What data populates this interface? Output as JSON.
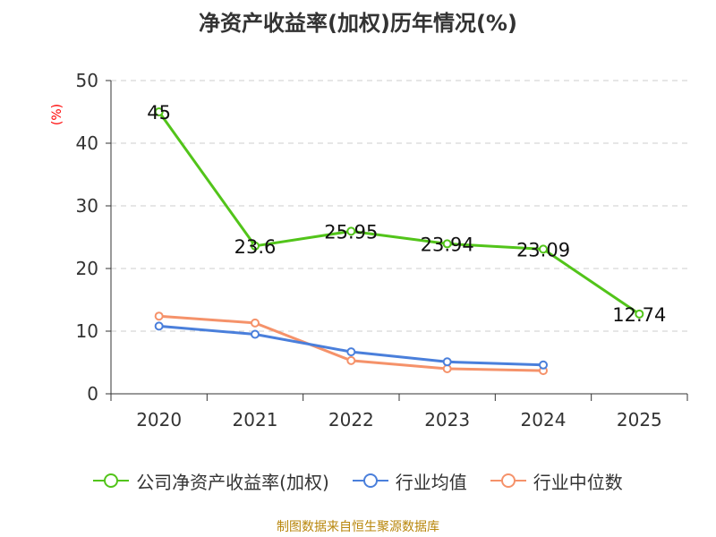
{
  "colors": {
    "company": "#52c41a",
    "industry_avg": "#4a7fdb",
    "industry_median": "#f5926a",
    "source": "#b8860b",
    "unit": "#ff0000"
  },
  "chart_data": {
    "type": "line",
    "title": "净资产收益率(加权)历年情况(%)",
    "ylabel": "(%)",
    "xlabel": "",
    "categories": [
      "2020",
      "2021",
      "2022",
      "2023",
      "2024",
      "2025"
    ],
    "ylim": [
      0,
      50
    ],
    "yticks": [
      0,
      10,
      20,
      30,
      40,
      50
    ],
    "grid": true,
    "legend_position": "bottom",
    "series": [
      {
        "name": "公司净资产收益率(加权)",
        "values": [
          45,
          23.6,
          25.95,
          23.94,
          23.09,
          12.74
        ],
        "labels": [
          "45",
          "23.6",
          "25.95",
          "23.94",
          "23.09",
          "12.74"
        ]
      },
      {
        "name": "行业均值",
        "values": [
          10.8,
          9.5,
          6.7,
          5.1,
          4.6,
          null
        ]
      },
      {
        "name": "行业中位数",
        "values": [
          12.4,
          11.3,
          5.3,
          4.0,
          3.7,
          null
        ]
      }
    ]
  },
  "source_text": "制图数据来自恒生聚源数据库"
}
